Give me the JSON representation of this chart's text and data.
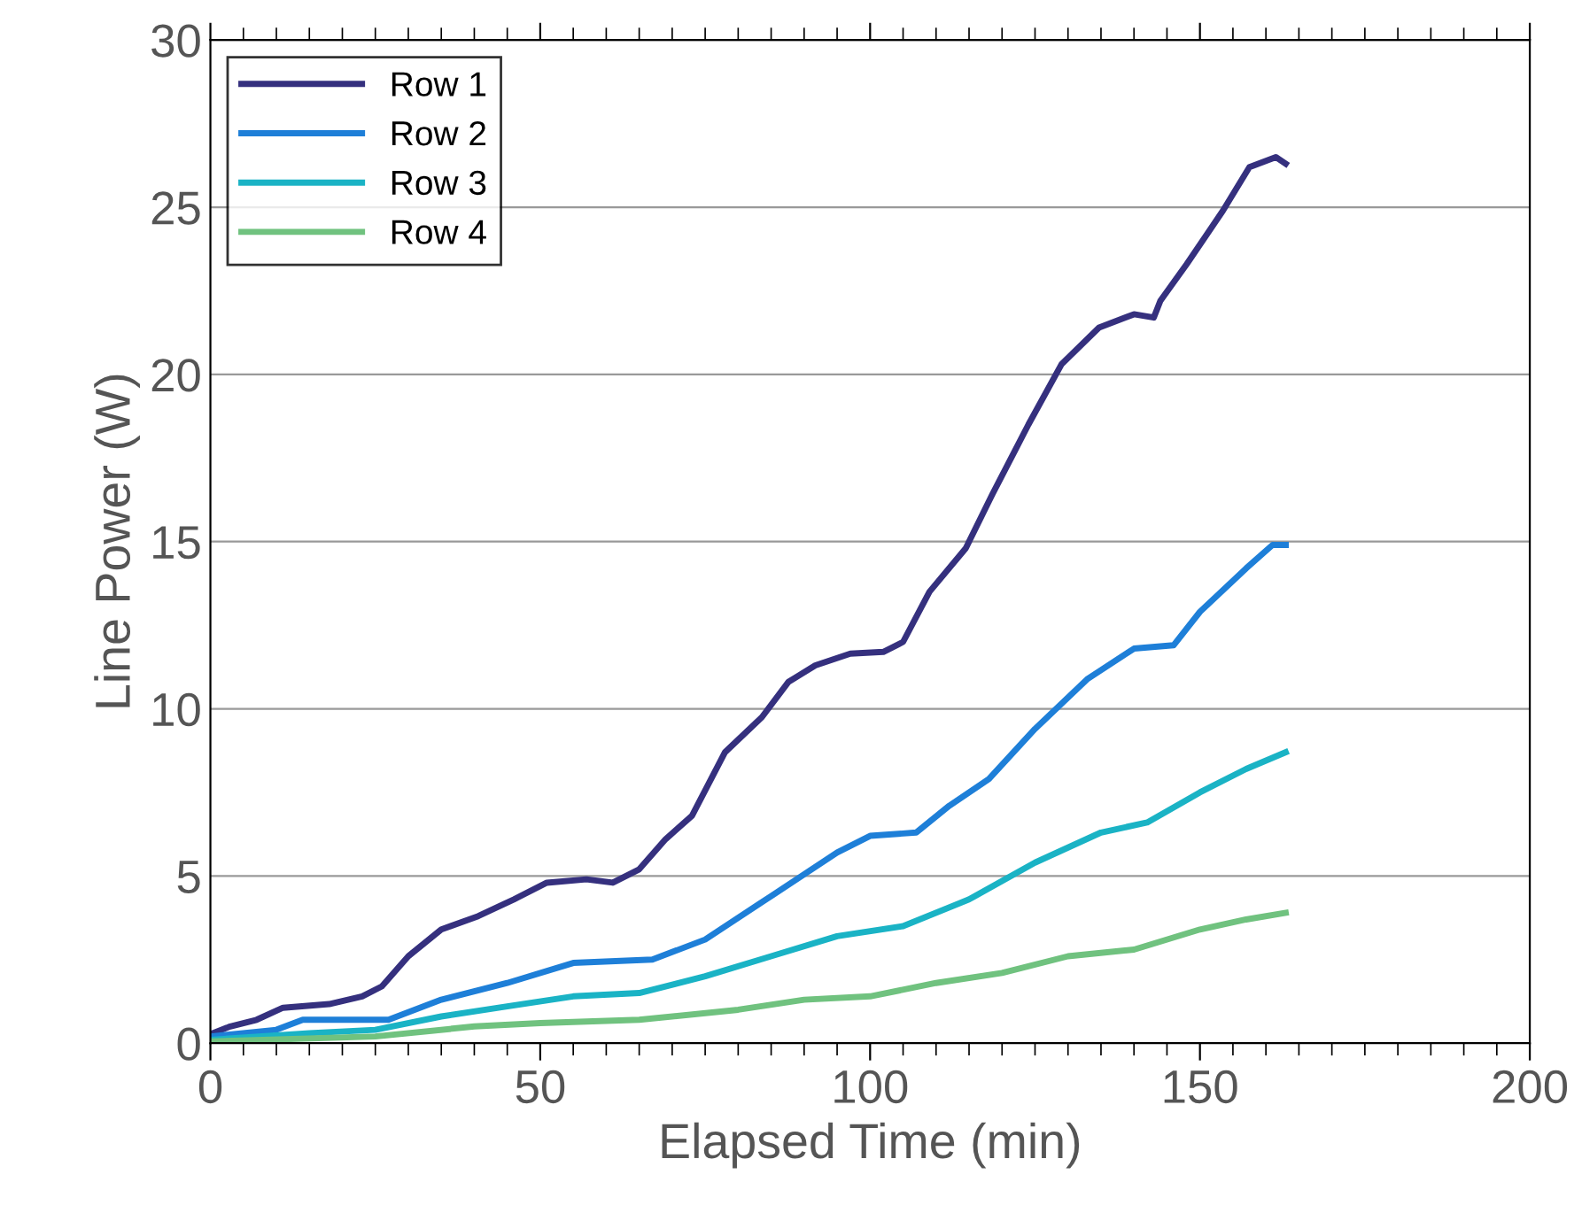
{
  "chart_data": {
    "type": "line",
    "xlabel": "Elapsed Time (min)",
    "ylabel": "Line Power (W)",
    "xlim": [
      0,
      200
    ],
    "xticks": [
      0,
      50,
      100,
      150,
      200
    ],
    "ylim": [
      0,
      30
    ],
    "yticks": [
      0,
      5,
      10,
      15,
      20,
      25,
      30
    ],
    "grid": "y",
    "legend": "top left",
    "line_style": "solid",
    "series": [
      {
        "name": "Row 1",
        "color": "#35307e",
        "x": [
          0,
          3,
          7,
          11,
          18,
          23,
          26,
          30,
          35,
          40.6,
          46,
          51,
          57,
          61,
          65,
          69,
          73,
          78,
          83.6,
          87.6,
          91.7,
          97,
          102,
          105,
          109,
          114.5,
          118.5,
          124,
          129,
          134.7,
          140,
          143,
          144,
          148,
          153.5,
          157.5,
          161.5,
          163
        ],
        "values": [
          0.27,
          0.5,
          0.7,
          1.06,
          1.17,
          1.4,
          1.7,
          2.6,
          3.4,
          3.8,
          4.3,
          4.8,
          4.9,
          4.8,
          5.2,
          6.1,
          6.8,
          8.7,
          9.75,
          10.8,
          11.3,
          11.65,
          11.7,
          12,
          13.5,
          14.8,
          16.4,
          18.5,
          20.3,
          21.4,
          21.8,
          21.7,
          22.2,
          23.3,
          24.9,
          26.2,
          26.5,
          26.3
        ]
      },
      {
        "name": "Row 2",
        "color": "#1e7fd8",
        "x": [
          0,
          10,
          14,
          27,
          35,
          45,
          55,
          67,
          75,
          85,
          95,
          100,
          107,
          112,
          118,
          125,
          133,
          140,
          146,
          150,
          157,
          161,
          163
        ],
        "values": [
          0.2,
          0.4,
          0.7,
          0.7,
          1.3,
          1.8,
          2.4,
          2.5,
          3.1,
          4.4,
          5.7,
          6.2,
          6.3,
          7.1,
          7.9,
          9.4,
          10.9,
          11.8,
          11.9,
          12.9,
          14.2,
          14.9,
          14.9
        ]
      },
      {
        "name": "Row 3",
        "color": "#1ab3c5",
        "x": [
          0,
          15,
          25,
          35,
          45,
          55,
          65,
          75,
          85,
          95,
          105,
          115,
          125,
          135,
          142,
          150,
          157,
          163
        ],
        "values": [
          0.1,
          0.3,
          0.4,
          0.8,
          1.1,
          1.4,
          1.5,
          2.0,
          2.6,
          3.2,
          3.5,
          4.3,
          5.4,
          6.3,
          6.6,
          7.5,
          8.2,
          8.7
        ]
      },
      {
        "name": "Row 4",
        "color": "#70c27f",
        "x": [
          0,
          25,
          40,
          50,
          65,
          80,
          90,
          100,
          110,
          120,
          130,
          140,
          150,
          157,
          163
        ],
        "values": [
          0.05,
          0.2,
          0.5,
          0.6,
          0.7,
          1.0,
          1.3,
          1.4,
          1.8,
          2.1,
          2.6,
          2.8,
          3.4,
          3.7,
          3.9
        ]
      }
    ]
  }
}
